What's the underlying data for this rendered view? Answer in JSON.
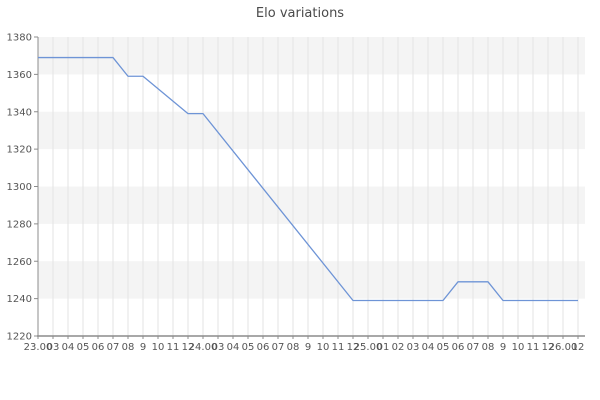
{
  "title": "Elo variations",
  "colors": {
    "line": "#6e94d6",
    "band": "#f4f4f4",
    "grid": "#e3e3e3",
    "axis": "#8c8c8c",
    "tick_label": "#555555",
    "title_color": "#4a4a4a",
    "background": "#ffffff"
  },
  "chart_data": {
    "type": "line",
    "title": "Elo variations",
    "xlabel": "",
    "ylabel": "",
    "grid": true,
    "legend_position": "none",
    "ylim": [
      1220,
      1380
    ],
    "y_ticks": [
      1220,
      1240,
      1260,
      1280,
      1300,
      1320,
      1340,
      1360,
      1380
    ],
    "band_intervals": [
      [
        1240,
        1260
      ],
      [
        1280,
        1300
      ],
      [
        1320,
        1340
      ],
      [
        1360,
        1380
      ]
    ],
    "x_tick_labels": [
      "23.00",
      "03",
      "04",
      "05",
      "06",
      "07",
      "08",
      "9",
      "10",
      "11",
      "12",
      "24.00",
      "03",
      "04",
      "05",
      "06",
      "07",
      "08",
      "9",
      "10",
      "11",
      "12",
      "25.00",
      "01",
      "02",
      "03",
      "04",
      "05",
      "06",
      "07",
      "08",
      "9",
      "10",
      "11",
      "12",
      "26.00",
      "12"
    ],
    "series": [
      {
        "name": "Elo",
        "points": [
          [
            0,
            1369
          ],
          [
            5,
            1369
          ],
          [
            6,
            1359
          ],
          [
            7,
            1359
          ],
          [
            10,
            1339
          ],
          [
            11,
            1339
          ],
          [
            21,
            1239
          ],
          [
            27,
            1239
          ],
          [
            28,
            1249
          ],
          [
            30,
            1249
          ],
          [
            31,
            1239
          ],
          [
            36,
            1239
          ]
        ]
      }
    ]
  }
}
